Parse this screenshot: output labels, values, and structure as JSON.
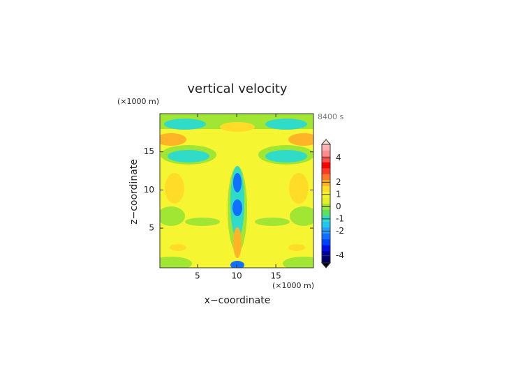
{
  "chart_data": {
    "type": "contour",
    "title": "vertical velocity",
    "time_label": "8400 s",
    "x_label": "x−coordinate",
    "y_label": "z−coordinate",
    "x_unit": "(×1000 m)",
    "y_unit": "(×1000 m)",
    "xlim": [
      0.2,
      19.8
    ],
    "ylim": [
      -0.2,
      20
    ],
    "xticks": [
      5,
      10,
      15
    ],
    "yticks": [
      5,
      10,
      15
    ],
    "colorbar": {
      "lim": [
        -4.6,
        5.1
      ],
      "ticks": [
        -4,
        -2,
        -1,
        0,
        1,
        2,
        4
      ],
      "colors": [
        "#000060",
        "#0000a0",
        "#0010e0",
        "#0040ff",
        "#1070ff",
        "#20a0ff",
        "#20c8f0",
        "#30dcc8",
        "#60e060",
        "#a0e632",
        "#e6f028",
        "#f5f532",
        "#ffdc28",
        "#ffb428",
        "#ff7828",
        "#ff3c28",
        "#ff0000",
        "#ff5050",
        "#ff8c8c",
        "#ffb4b4"
      ]
    }
  }
}
